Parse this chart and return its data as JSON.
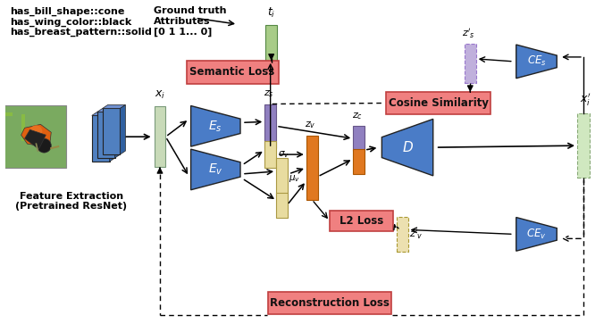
{
  "bg_color": "#ffffff",
  "text_left_lines": [
    "has_bill_shape::cone",
    "has_wing_color::black",
    "has_breast_pattern::solid"
  ],
  "box_semantic_loss": "Semantic Loss",
  "box_cosine_sim": "Cosine Similarity",
  "box_l2_loss": "L2 Loss",
  "box_recon_loss": "Reconstruction Loss",
  "label_feat_extract": "Feature Extraction\n(Pretrained ResNet)",
  "color_blue": "#4a7cc7",
  "color_pink": "#f08080",
  "color_pink_edge": "#c04040",
  "color_purple": "#9080c0",
  "color_orange": "#e07820",
  "color_yellow": "#e8dca0",
  "color_green_bar": "#b0cc90",
  "color_green_xi": "#c8dab8",
  "color_green_xip": "#c8dab8",
  "color_conv": "#5080c0",
  "color_bird_bg": "#70aa60",
  "color_bird_body": "#e07010",
  "fig_w": 6.85,
  "fig_h": 3.63,
  "dpi": 100
}
